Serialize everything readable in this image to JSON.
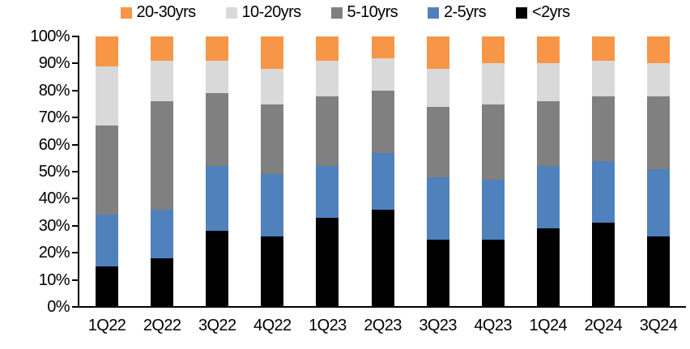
{
  "chart_data": {
    "type": "bar",
    "stacked": true,
    "percent": true,
    "title": "",
    "xlabel": "",
    "ylabel": "",
    "grid": false,
    "axis_color": "#000000",
    "background_color": "#ffffff",
    "legend_position": "top",
    "legend_order": [
      "20-30yrs",
      "10-20yrs",
      "5-10yrs",
      "2-5yrs",
      "<2yrs"
    ],
    "categories": [
      "1Q22",
      "2Q22",
      "3Q22",
      "4Q22",
      "1Q23",
      "2Q23",
      "3Q23",
      "4Q23",
      "1Q24",
      "2Q24",
      "3Q24"
    ],
    "series": [
      {
        "name": "<2yrs",
        "color": "#000000",
        "values": [
          15,
          18,
          28,
          26,
          33,
          36,
          25,
          25,
          29,
          31,
          26
        ]
      },
      {
        "name": "2-5yrs",
        "color": "#4F81BD",
        "values": [
          19,
          18,
          24,
          23,
          19,
          21,
          23,
          22,
          23,
          23,
          25
        ]
      },
      {
        "name": "5-10yrs",
        "color": "#808080",
        "values": [
          33,
          40,
          27,
          26,
          26,
          23,
          26,
          28,
          24,
          24,
          27
        ]
      },
      {
        "name": "10-20yrs",
        "color": "#D9D9D9",
        "values": [
          22,
          15,
          12,
          13,
          13,
          12,
          14,
          15,
          14,
          13,
          12
        ]
      },
      {
        "name": "20-30yrs",
        "color": "#F79646",
        "values": [
          11,
          9,
          9,
          12,
          9,
          8,
          12,
          10,
          10,
          9,
          10
        ]
      }
    ],
    "ylim": [
      0,
      100
    ],
    "ytick_step": 10,
    "ytick_labels": [
      "0%",
      "10%",
      "20%",
      "30%",
      "40%",
      "50%",
      "60%",
      "70%",
      "80%",
      "90%",
      "100%"
    ]
  }
}
